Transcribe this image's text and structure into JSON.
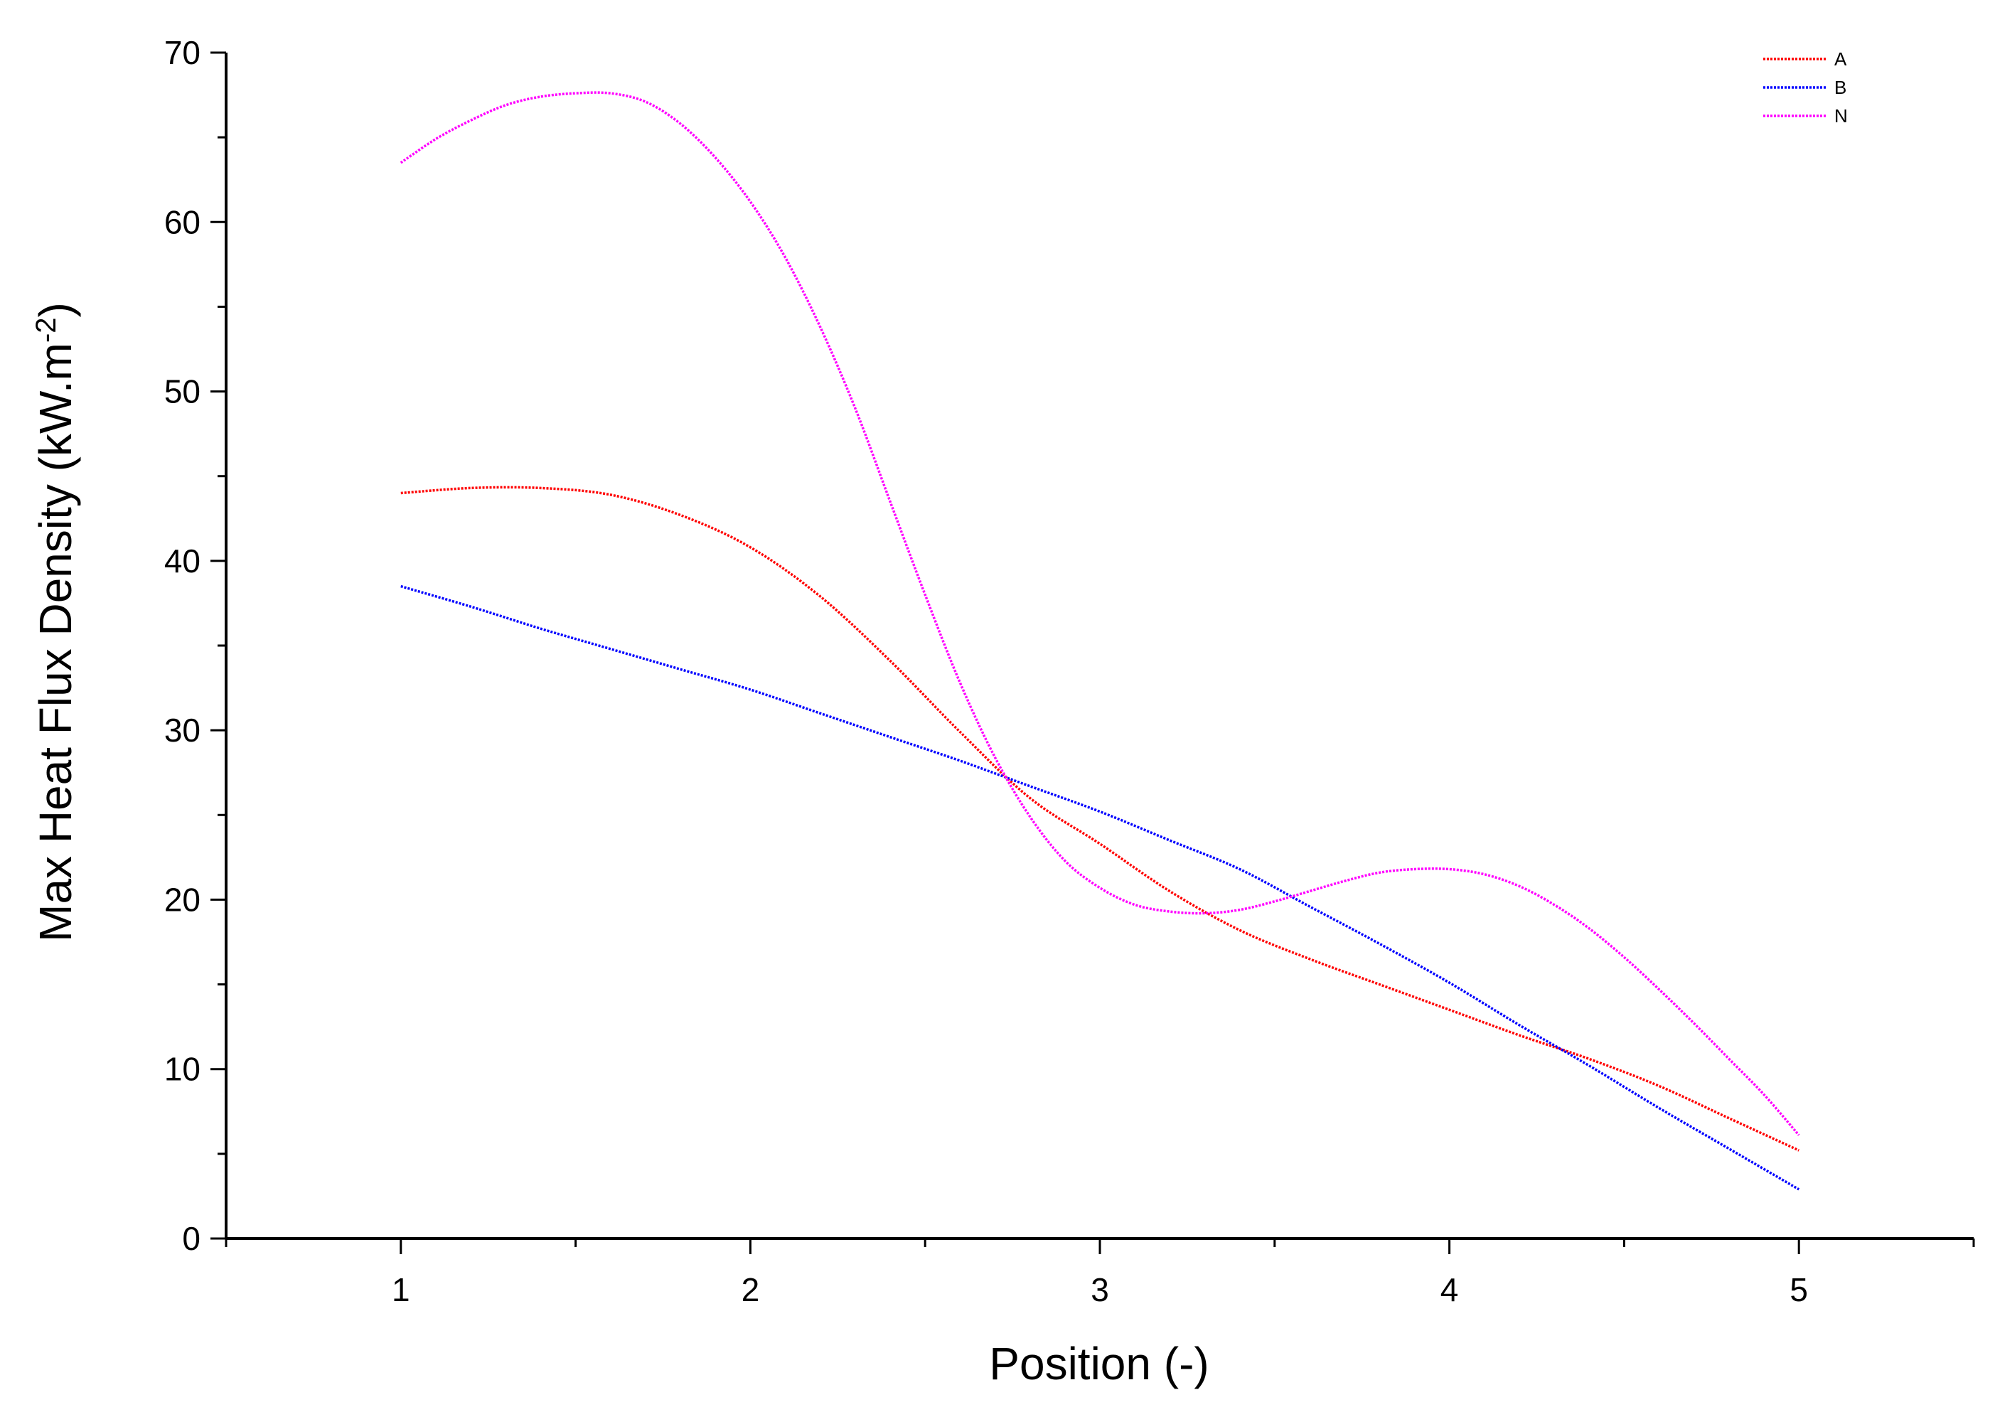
{
  "chart_data": {
    "type": "line",
    "title": "",
    "xlabel": "Position (-)",
    "ylabel_main": "Max Heat Flux Density (kW.m",
    "ylabel_sup": "-2",
    "ylabel_end": ")",
    "xlim": [
      0.5,
      5.5
    ],
    "ylim": [
      0,
      70
    ],
    "xticks": [
      1,
      2,
      3,
      4,
      5
    ],
    "yticks": [
      0,
      10,
      20,
      30,
      40,
      50,
      60,
      70
    ],
    "grid": false,
    "legend_position": "top-right",
    "series": [
      {
        "name": "A",
        "color": "#ff0000",
        "x": [
          1.0,
          1.2,
          1.4,
          1.6,
          1.8,
          2.0,
          2.2,
          2.4,
          2.6,
          2.8,
          3.0,
          3.2,
          3.4,
          3.6,
          3.8,
          4.0,
          4.2,
          4.4,
          4.6,
          4.8,
          5.0
        ],
        "y": [
          44.0,
          44.3,
          44.3,
          43.9,
          42.7,
          40.8,
          37.9,
          34.1,
          29.9,
          26.0,
          23.3,
          20.5,
          18.2,
          16.5,
          15.0,
          13.5,
          12.0,
          10.6,
          9.0,
          7.1,
          5.2
        ]
      },
      {
        "name": "B",
        "color": "#0000ff",
        "x": [
          1.0,
          1.2,
          1.4,
          1.6,
          1.8,
          2.0,
          2.2,
          2.4,
          2.6,
          2.8,
          3.0,
          3.2,
          3.4,
          3.6,
          3.8,
          4.0,
          4.2,
          4.4,
          4.6,
          4.8,
          5.0
        ],
        "y": [
          38.5,
          37.3,
          36.0,
          34.8,
          33.6,
          32.4,
          31.0,
          29.6,
          28.2,
          26.7,
          25.2,
          23.5,
          21.8,
          19.6,
          17.4,
          15.1,
          12.6,
          10.2,
          7.7,
          5.3,
          2.9
        ]
      },
      {
        "name": "N",
        "color": "#ff00ff",
        "x": [
          1.0,
          1.1,
          1.2,
          1.3,
          1.4,
          1.5,
          1.6,
          1.7,
          1.8,
          1.9,
          2.0,
          2.1,
          2.2,
          2.3,
          2.4,
          2.5,
          2.6,
          2.7,
          2.8,
          2.9,
          3.0,
          3.1,
          3.2,
          3.3,
          3.4,
          3.5,
          3.6,
          3.7,
          3.8,
          3.9,
          4.0,
          4.1,
          4.2,
          4.3,
          4.4,
          4.5,
          4.6,
          4.7,
          4.8,
          4.9,
          5.0
        ],
        "y": [
          63.5,
          64.9,
          66.0,
          66.9,
          67.4,
          67.6,
          67.6,
          67.1,
          65.8,
          63.8,
          61.2,
          57.9,
          53.8,
          49.0,
          43.5,
          38.0,
          32.8,
          28.4,
          24.9,
          22.3,
          20.7,
          19.7,
          19.3,
          19.2,
          19.4,
          19.9,
          20.5,
          21.1,
          21.6,
          21.8,
          21.8,
          21.5,
          20.8,
          19.7,
          18.3,
          16.6,
          14.7,
          12.7,
          10.6,
          8.5,
          6.1
        ]
      }
    ]
  }
}
